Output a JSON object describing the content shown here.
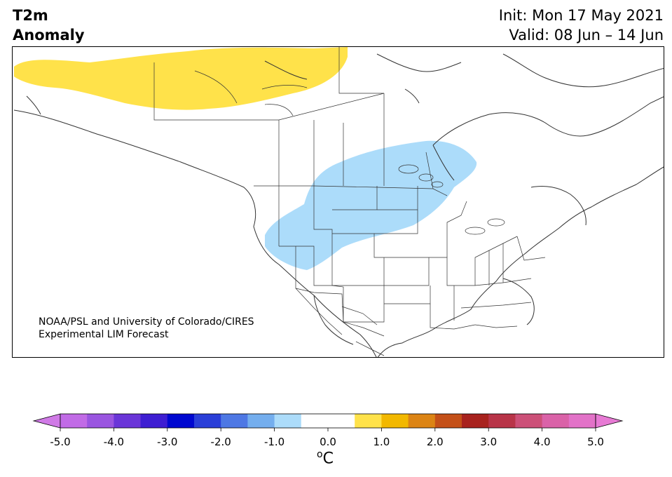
{
  "header": {
    "title_line1": "T2m",
    "title_line2": "Anomaly",
    "init_text": "Init: Mon 17 May 2021",
    "valid_text": "Valid: 08 Jun – 14 Jun"
  },
  "credit": {
    "line1": "NOAA/PSL and University of Colorado/CIRES",
    "line2": "Experimental LIM Forecast"
  },
  "colorbar": {
    "unit_base": "C",
    "unit_sup": "o",
    "tick_labels": [
      "-5.0",
      "-4.0",
      "-3.0",
      "-2.0",
      "-1.0",
      "0.0",
      "1.0",
      "2.0",
      "3.0",
      "4.0",
      "5.0"
    ],
    "under_color": "#d07ae6",
    "over_color": "#e77ad4",
    "bin_colors": [
      "#c16be6",
      "#9a55e0",
      "#6a35d8",
      "#3e1ed2",
      "#0008d0",
      "#2a3fd8",
      "#4e78e4",
      "#74aeee",
      "#acdcfa",
      "#ffffff",
      "#ffffff",
      "#ffe24a",
      "#f2b800",
      "#dc8414",
      "#c45018",
      "#a8221e",
      "#b83448",
      "#cc5078",
      "#da62a8",
      "#e272c8"
    ]
  },
  "map": {
    "land_color": "#ffffff",
    "border_color": "#333333",
    "warm_anomaly_color": "#ffe24a",
    "cold_anomaly_color": "#acdcfa",
    "anomalies": [
      {
        "label": "warm",
        "region": "northern-canada-arctic"
      },
      {
        "label": "cold",
        "region": "northern-plains-rockies"
      }
    ]
  }
}
